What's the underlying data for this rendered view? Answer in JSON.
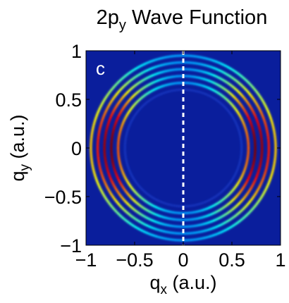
{
  "chart_data": {
    "type": "heatmap",
    "title": {
      "main": "2p",
      "sub": "y",
      "rest": " Wave Function"
    },
    "panel_label": "c",
    "xlabel": {
      "main": "q",
      "sub": "x",
      "rest": " (a.u.)"
    },
    "ylabel": {
      "main": "q",
      "sub": "y",
      "rest": " (a.u.)"
    },
    "xlim": [
      -1,
      1
    ],
    "ylim": [
      -1,
      1
    ],
    "xticks": [
      -1,
      -0.5,
      0,
      0.5,
      1
    ],
    "yticks": [
      -1,
      -0.5,
      0,
      0.5,
      1
    ],
    "xtick_labels": [
      "−1",
      "−0.5",
      "0",
      "0.5",
      "1"
    ],
    "ytick_labels": [
      "1",
      "0.5",
      "0",
      "−0.5",
      "−1"
    ],
    "colormap": "jet",
    "background_color": "#0a1e9c",
    "rings": [
      {
        "radius": 0.74,
        "intensity": 1.0
      },
      {
        "radius": 0.81,
        "intensity": 0.95
      },
      {
        "radius": 0.88,
        "intensity": 0.8
      },
      {
        "radius": 0.95,
        "intensity": 0.55
      },
      {
        "radius": 0.67,
        "intensity": 0.7
      }
    ],
    "angular_dependence": "cos^2(theta) (px/py lobes along qx)",
    "divider_line": {
      "x": 0,
      "style": "dashed",
      "color": "#ffffff"
    },
    "grid": false,
    "legend": "none"
  }
}
